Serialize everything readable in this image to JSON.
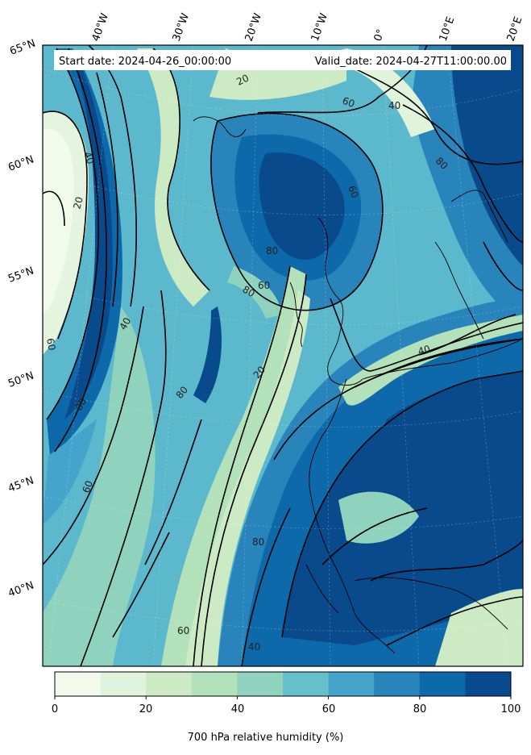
{
  "header": {
    "start_date": "Start date: 2024-04-26_00:00:00",
    "valid_date": "Valid_date: 2024-04-27T11:00:00.00"
  },
  "longitude_labels": [
    "40°W",
    "30°W",
    "20°W",
    "10°W",
    "0°",
    "10°E",
    "20°E"
  ],
  "latitude_labels": [
    "65°N",
    "60°N",
    "55°N",
    "50°N",
    "45°N",
    "40°N"
  ],
  "contour_labels": [
    "20",
    "40",
    "60",
    "80",
    "60",
    "40",
    "80",
    "60",
    "20",
    "60",
    "40",
    "80",
    "80",
    "20",
    "80",
    "60",
    "40",
    "80",
    "60",
    "40"
  ],
  "colorbar": {
    "title": "700 hPa relative humidity (%)",
    "tick_labels": [
      "0",
      "20",
      "40",
      "60",
      "80",
      "100"
    ],
    "range": [
      0,
      100
    ],
    "colors": [
      "#f2faec",
      "#e0f3db",
      "#ccebc5",
      "#b3e1ba",
      "#8fd3bf",
      "#67bfcc",
      "#45a3cc",
      "#2884bb",
      "#0e69ab",
      "#084a8c"
    ]
  }
}
